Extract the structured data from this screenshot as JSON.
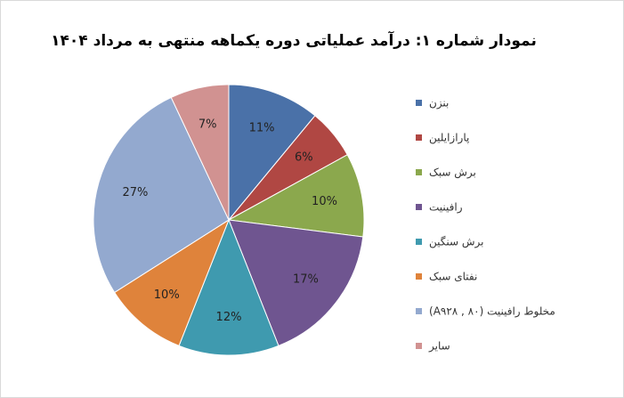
{
  "chart_data": {
    "type": "pie",
    "title": "نمودار شماره ۱: درآمد عملیاتی دوره یکماهه منتهی به مرداد ۱۴۰۴",
    "categories": [
      "بنزن",
      "پارازایلین",
      "برش سبک",
      "رافینیت",
      "برش سنگین",
      "نفتای سبک",
      "مخلوط رافینیت (A۹۲۸ , ۸۰)",
      "سایر"
    ],
    "values": [
      11,
      6,
      10,
      17,
      12,
      10,
      27,
      7
    ],
    "value_labels": [
      "11%",
      "6%",
      "10%",
      "17%",
      "12%",
      "10%",
      "27%",
      "7%"
    ],
    "colors": [
      "#4a71a8",
      "#b04743",
      "#8ba84d",
      "#6f5590",
      "#3f9aaf",
      "#df833b",
      "#93a9cf",
      "#d19291"
    ],
    "legend": "right"
  }
}
